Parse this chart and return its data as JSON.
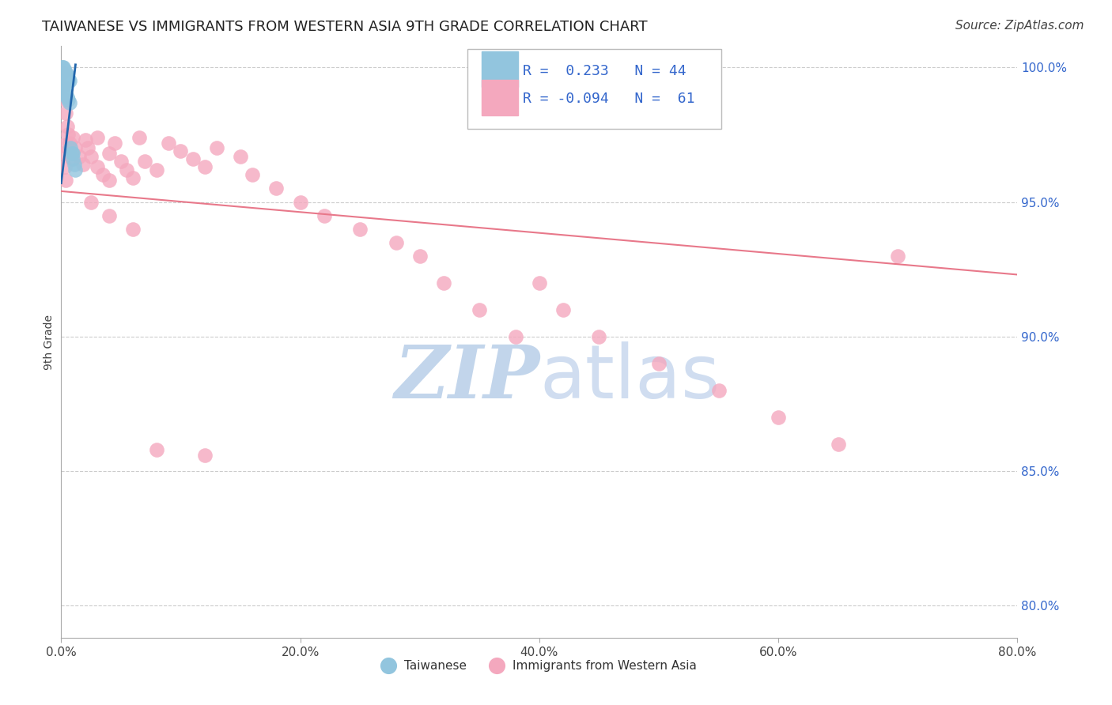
{
  "title": "TAIWANESE VS IMMIGRANTS FROM WESTERN ASIA 9TH GRADE CORRELATION CHART",
  "source": "Source: ZipAtlas.com",
  "ylabel": "9th Grade",
  "x_tick_labels": [
    "0.0%",
    "20.0%",
    "40.0%",
    "60.0%",
    "80.0%"
  ],
  "x_tick_values": [
    0.0,
    0.2,
    0.4,
    0.6,
    0.8
  ],
  "y_tick_labels": [
    "80.0%",
    "85.0%",
    "90.0%",
    "95.0%",
    "100.0%"
  ],
  "y_tick_values": [
    0.8,
    0.85,
    0.9,
    0.95,
    1.0
  ],
  "xlim": [
    0.0,
    0.8
  ],
  "ylim": [
    0.788,
    1.008
  ],
  "blue_color": "#92c5de",
  "pink_color": "#f4a8be",
  "blue_line_color": "#2166ac",
  "pink_line_color": "#e8788a",
  "background_color": "#ffffff",
  "grid_color": "#cccccc",
  "watermark_zip": "ZIP",
  "watermark_atlas": "atlas",
  "watermark_color": "#c8d8ee",
  "title_fontsize": 13,
  "axis_label_fontsize": 10,
  "tick_fontsize": 11,
  "legend_fontsize": 13,
  "source_fontsize": 11,
  "blue_x": [
    0.001,
    0.001,
    0.001,
    0.001,
    0.001,
    0.001,
    0.001,
    0.001,
    0.002,
    0.002,
    0.002,
    0.002,
    0.002,
    0.002,
    0.003,
    0.003,
    0.003,
    0.003,
    0.003,
    0.004,
    0.004,
    0.004,
    0.005,
    0.005,
    0.006,
    0.006,
    0.007,
    0.008,
    0.009,
    0.01,
    0.01,
    0.011,
    0.012,
    0.0005,
    0.0005,
    0.0005,
    0.001,
    0.001,
    0.002,
    0.003,
    0.004,
    0.005,
    0.006,
    0.007
  ],
  "blue_y": [
    1.0,
    0.999,
    0.999,
    0.998,
    0.997,
    0.996,
    0.996,
    0.995,
    1.0,
    0.999,
    0.998,
    0.997,
    0.996,
    0.995,
    0.999,
    0.998,
    0.997,
    0.996,
    0.995,
    0.998,
    0.997,
    0.996,
    0.997,
    0.996,
    0.996,
    0.995,
    0.995,
    0.97,
    0.968,
    0.968,
    0.966,
    0.964,
    0.962,
    1.0,
    0.999,
    0.998,
    0.994,
    0.993,
    0.992,
    0.991,
    0.99,
    0.989,
    0.988,
    0.987
  ],
  "pink_x": [
    0.001,
    0.001,
    0.002,
    0.002,
    0.003,
    0.003,
    0.004,
    0.004,
    0.005,
    0.006,
    0.007,
    0.008,
    0.009,
    0.01,
    0.012,
    0.015,
    0.018,
    0.02,
    0.022,
    0.025,
    0.03,
    0.03,
    0.035,
    0.04,
    0.04,
    0.045,
    0.05,
    0.055,
    0.06,
    0.065,
    0.07,
    0.08,
    0.09,
    0.1,
    0.11,
    0.12,
    0.13,
    0.15,
    0.16,
    0.18,
    0.2,
    0.22,
    0.25,
    0.28,
    0.3,
    0.32,
    0.35,
    0.38,
    0.4,
    0.42,
    0.45,
    0.5,
    0.55,
    0.6,
    0.65,
    0.7,
    0.025,
    0.04,
    0.06,
    0.08,
    0.12
  ],
  "pink_y": [
    0.998,
    0.971,
    0.993,
    0.968,
    0.988,
    0.963,
    0.983,
    0.958,
    0.978,
    0.975,
    0.972,
    0.969,
    0.966,
    0.974,
    0.97,
    0.967,
    0.964,
    0.973,
    0.97,
    0.967,
    0.974,
    0.963,
    0.96,
    0.968,
    0.958,
    0.972,
    0.965,
    0.962,
    0.959,
    0.974,
    0.965,
    0.962,
    0.972,
    0.969,
    0.966,
    0.963,
    0.97,
    0.967,
    0.96,
    0.955,
    0.95,
    0.945,
    0.94,
    0.935,
    0.93,
    0.92,
    0.91,
    0.9,
    0.92,
    0.91,
    0.9,
    0.89,
    0.88,
    0.87,
    0.86,
    0.93,
    0.95,
    0.945,
    0.94,
    0.858,
    0.856
  ],
  "pink_line_x": [
    0.0,
    0.8
  ],
  "pink_line_y": [
    0.954,
    0.923
  ],
  "blue_line_x": [
    0.0,
    0.012
  ],
  "blue_line_y": [
    0.957,
    1.001
  ]
}
